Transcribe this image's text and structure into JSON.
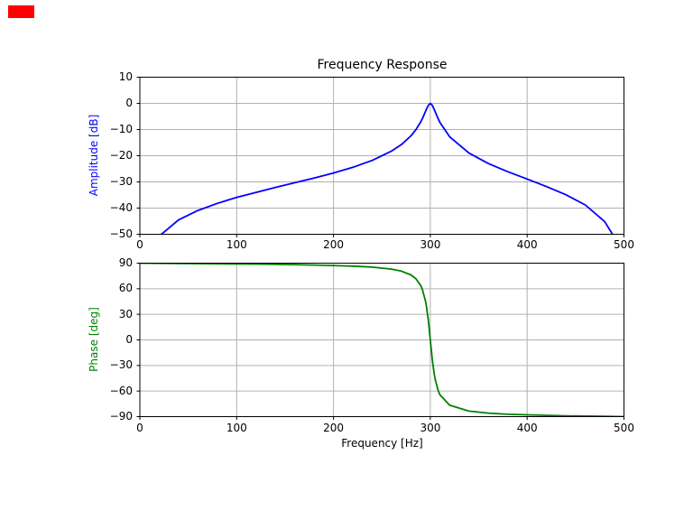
{
  "figure": {
    "background": "#ffffff",
    "frame_color": "#000000",
    "grid_color": "#b0b0b0",
    "tick_color": "#000000"
  },
  "marker": {
    "color": "#ff0000"
  },
  "chart_data": [
    {
      "type": "line",
      "title": "Frequency Response",
      "xlabel": "",
      "ylabel": "Amplitude [dB]",
      "xlim": [
        0,
        500
      ],
      "ylim": [
        -50,
        10
      ],
      "xticks": [
        0,
        100,
        200,
        300,
        400,
        500
      ],
      "yticks": [
        10,
        0,
        -10,
        -20,
        -30,
        -40,
        -50
      ],
      "grid": true,
      "legend": false,
      "series": [
        {
          "name": "amplitude",
          "color": "#0000ff",
          "x": [
            5,
            10,
            20,
            40,
            60,
            80,
            100,
            120,
            140,
            160,
            180,
            200,
            220,
            240,
            260,
            270,
            280,
            285,
            290,
            292,
            295,
            296,
            298,
            300,
            302,
            304,
            305,
            308,
            310,
            320,
            340,
            360,
            380,
            400,
            420,
            440,
            460,
            480,
            490,
            495
          ],
          "y": [
            -62.8,
            -56.7,
            -50.7,
            -44.5,
            -40.9,
            -38.2,
            -35.9,
            -34.0,
            -32.1,
            -30.3,
            -28.5,
            -26.6,
            -24.4,
            -21.8,
            -18.2,
            -15.8,
            -12.4,
            -10.1,
            -7.1,
            -5.7,
            -3.1,
            -2.2,
            -0.7,
            0.0,
            -0.7,
            -2.3,
            -3.2,
            -5.8,
            -7.3,
            -12.8,
            -19.0,
            -23.0,
            -26.1,
            -28.9,
            -31.8,
            -34.9,
            -38.8,
            -45.1,
            -51.1,
            -57.2
          ]
        }
      ]
    },
    {
      "type": "line",
      "title": "",
      "xlabel": "Frequency [Hz]",
      "ylabel": "Phase [deg]",
      "xlim": [
        0,
        500
      ],
      "ylim": [
        -90,
        90
      ],
      "xticks": [
        0,
        100,
        200,
        300,
        400,
        500
      ],
      "yticks": [
        90,
        60,
        30,
        0,
        -30,
        -60,
        -90
      ],
      "grid": true,
      "legend": false,
      "series": [
        {
          "name": "phase",
          "color": "#008000",
          "x": [
            0,
            40,
            80,
            120,
            160,
            200,
            220,
            240,
            260,
            270,
            280,
            285,
            290,
            292,
            295,
            296,
            298,
            300,
            302,
            304,
            305,
            308,
            310,
            320,
            340,
            360,
            380,
            400,
            440,
            480,
            500
          ],
          "y": [
            90,
            89.7,
            89.3,
            88.9,
            88.3,
            87.3,
            86.5,
            85.3,
            83.0,
            80.7,
            76.2,
            71.9,
            63.9,
            58.5,
            45.6,
            39.3,
            22.2,
            -0.3,
            -22.7,
            -39.8,
            -46.2,
            -59.1,
            -64.5,
            -76.7,
            -83.5,
            -85.9,
            -87.2,
            -87.9,
            -89.0,
            -89.7,
            -90
          ]
        }
      ]
    }
  ]
}
